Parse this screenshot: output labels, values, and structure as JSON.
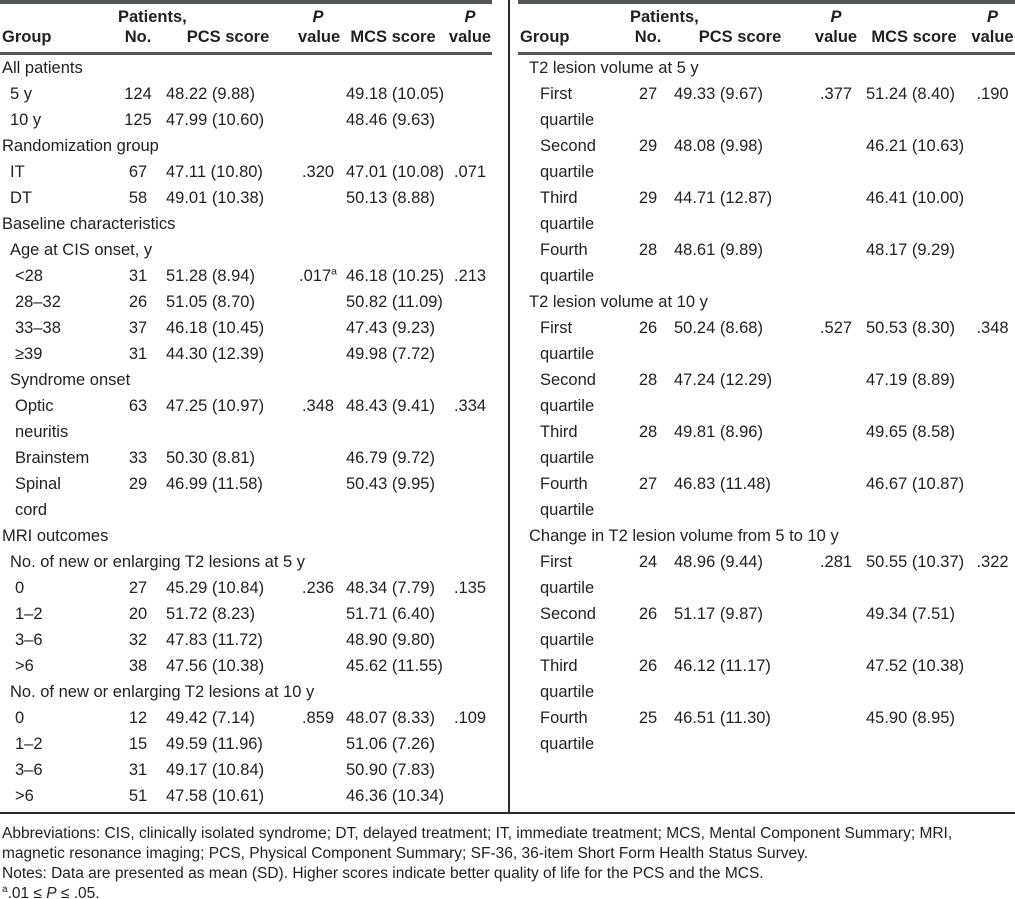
{
  "header": {
    "group": "Group",
    "patients_line1": "Patients,",
    "patients_line2": "No.",
    "pcs": "PCS score",
    "p_line1": "P",
    "p_line2": "value",
    "mcs": "MCS score"
  },
  "left_table": {
    "rows": [
      {
        "section": true,
        "indent": 0,
        "label": "All patients"
      },
      {
        "indent": 1,
        "label": "5 y",
        "n": "124",
        "pcs": "48.22 (9.88)",
        "p1": "",
        "mcs": "49.18 (10.05)",
        "p2": ""
      },
      {
        "indent": 1,
        "label": "10 y",
        "n": "125",
        "pcs": "47.99 (10.60)",
        "p1": "",
        "mcs": "48.46 (9.63)",
        "p2": ""
      },
      {
        "section": true,
        "indent": 0,
        "label": "Randomization group"
      },
      {
        "indent": 1,
        "label": "IT",
        "n": "67",
        "pcs": "47.11 (10.80)",
        "p1": ".320",
        "mcs": "47.01 (10.08)",
        "p2": ".071"
      },
      {
        "indent": 1,
        "label": "DT",
        "n": "58",
        "pcs": "49.01 (10.38)",
        "p1": "",
        "mcs": "50.13 (8.88)",
        "p2": ""
      },
      {
        "section": true,
        "indent": 0,
        "label": "Baseline characteristics"
      },
      {
        "section": true,
        "indent": 1,
        "label": "Age at CIS onset, y"
      },
      {
        "indent": 2,
        "label": "<28",
        "n": "31",
        "pcs": "51.28 (8.94)",
        "p1": ".017",
        "p1_sup": "a",
        "mcs": "46.18 (10.25)",
        "p2": ".213"
      },
      {
        "indent": 2,
        "label": "28–32",
        "n": "26",
        "pcs": "51.05 (8.70)",
        "p1": "",
        "mcs": "50.82 (11.09)",
        "p2": ""
      },
      {
        "indent": 2,
        "label": "33–38",
        "n": "37",
        "pcs": "46.18 (10.45)",
        "p1": "",
        "mcs": "47.43 (9.23)",
        "p2": ""
      },
      {
        "indent": 2,
        "label": "≥39",
        "n": "31",
        "pcs": "44.30 (12.39)",
        "p1": "",
        "mcs": "49.98 (7.72)",
        "p2": ""
      },
      {
        "section": true,
        "indent": 1,
        "label": "Syndrome onset"
      },
      {
        "indent": 2,
        "label": "Optic",
        "label2": "neuritis",
        "n": "63",
        "pcs": "47.25 (10.97)",
        "p1": ".348",
        "mcs": "48.43 (9.41)",
        "p2": ".334"
      },
      {
        "indent": 2,
        "label": "Brainstem",
        "n": "33",
        "pcs": "50.30 (8.81)",
        "p1": "",
        "mcs": "46.79 (9.72)",
        "p2": ""
      },
      {
        "indent": 2,
        "label": "Spinal",
        "label2": "cord",
        "n": "29",
        "pcs": "46.99 (11.58)",
        "p1": "",
        "mcs": "50.43 (9.95)",
        "p2": ""
      },
      {
        "section": true,
        "indent": 0,
        "label": "MRI outcomes"
      },
      {
        "section": true,
        "indent": 1,
        "label": "No. of new or enlarging T2 lesions at 5 y"
      },
      {
        "indent": 2,
        "label": "0",
        "n": "27",
        "pcs": "45.29 (10.84)",
        "p1": ".236",
        "mcs": "48.34 (7.79)",
        "p2": ".135"
      },
      {
        "indent": 2,
        "label": "1–2",
        "n": "20",
        "pcs": "51.72 (8.23)",
        "p1": "",
        "mcs": "51.71 (6.40)",
        "p2": ""
      },
      {
        "indent": 2,
        "label": "3–6",
        "n": "32",
        "pcs": "47.83 (11.72)",
        "p1": "",
        "mcs": "48.90 (9.80)",
        "p2": ""
      },
      {
        "indent": 2,
        "label": ">6",
        "n": "38",
        "pcs": "47.56 (10.38)",
        "p1": "",
        "mcs": "45.62 (11.55)",
        "p2": ""
      },
      {
        "section": true,
        "indent": 1,
        "label": "No. of new or enlarging T2 lesions at 10 y"
      },
      {
        "indent": 2,
        "label": "0",
        "n": "12",
        "pcs": "49.42 (7.14)",
        "p1": ".859",
        "mcs": "48.07 (8.33)",
        "p2": ".109"
      },
      {
        "indent": 2,
        "label": "1–2",
        "n": "15",
        "pcs": "49.59 (11.96)",
        "p1": "",
        "mcs": "51.06 (7.26)",
        "p2": ""
      },
      {
        "indent": 2,
        "label": "3–6",
        "n": "31",
        "pcs": "49.17 (10.84)",
        "p1": "",
        "mcs": "50.90 (7.83)",
        "p2": ""
      },
      {
        "indent": 2,
        "label": ">6",
        "n": "51",
        "pcs": "47.58 (10.61)",
        "p1": "",
        "mcs": "46.36 (10.34)",
        "p2": ""
      }
    ]
  },
  "right_table": {
    "rows": [
      {
        "section": true,
        "indent": 1,
        "label": "T2 lesion volume at 5 y"
      },
      {
        "indent": 2,
        "label": "First",
        "label2": "quartile",
        "n": "27",
        "pcs": "49.33 (9.67)",
        "p1": ".377",
        "mcs": "51.24 (8.40)",
        "p2": ".190"
      },
      {
        "indent": 2,
        "label": "Second",
        "label2": "quartile",
        "n": "29",
        "pcs": "48.08 (9.98)",
        "p1": "",
        "mcs": "46.21 (10.63)",
        "p2": ""
      },
      {
        "indent": 2,
        "label": "Third",
        "label2": "quartile",
        "n": "29",
        "pcs": "44.71 (12.87)",
        "p1": "",
        "mcs": "46.41 (10.00)",
        "p2": ""
      },
      {
        "indent": 2,
        "label": "Fourth",
        "label2": "quartile",
        "n": "28",
        "pcs": "48.61 (9.89)",
        "p1": "",
        "mcs": "48.17 (9.29)",
        "p2": ""
      },
      {
        "section": true,
        "indent": 1,
        "label": "T2 lesion volume at 10 y"
      },
      {
        "indent": 2,
        "label": "First",
        "label2": "quartile",
        "n": "26",
        "pcs": "50.24 (8.68)",
        "p1": ".527",
        "mcs": "50.53 (8.30)",
        "p2": ".348"
      },
      {
        "indent": 2,
        "label": "Second",
        "label2": "quartile",
        "n": "28",
        "pcs": "47.24 (12.29)",
        "p1": "",
        "mcs": "47.19 (8.89)",
        "p2": ""
      },
      {
        "indent": 2,
        "label": "Third",
        "label2": "quartile",
        "n": "28",
        "pcs": "49.81 (8.96)",
        "p1": "",
        "mcs": "49.65 (8.58)",
        "p2": ""
      },
      {
        "indent": 2,
        "label": "Fourth",
        "label2": "quartile",
        "n": "27",
        "pcs": "46.83 (11.48)",
        "p1": "",
        "mcs": "46.67 (10.87)",
        "p2": ""
      },
      {
        "section": true,
        "indent": 1,
        "label": "Change in T2 lesion volume from 5 to 10 y"
      },
      {
        "indent": 2,
        "label": "First",
        "label2": "quartile",
        "n": "24",
        "pcs": "48.96 (9.44)",
        "p1": ".281",
        "mcs": "50.55 (10.37)",
        "p2": ".322"
      },
      {
        "indent": 2,
        "label": "Second",
        "label2": "quartile",
        "n": "26",
        "pcs": "51.17 (9.87)",
        "p1": "",
        "mcs": "49.34 (7.51)",
        "p2": ""
      },
      {
        "indent": 2,
        "label": "Third",
        "label2": "quartile",
        "n": "26",
        "pcs": "46.12 (11.17)",
        "p1": "",
        "mcs": "47.52 (10.38)",
        "p2": ""
      },
      {
        "indent": 2,
        "label": "Fourth",
        "label2": "quartile",
        "n": "25",
        "pcs": "46.51 (11.30)",
        "p1": "",
        "mcs": "45.90 (8.95)",
        "p2": ""
      }
    ]
  },
  "footnotes": [
    {
      "segments": [
        {
          "t": "Abbreviations: CIS, clinically isolated syndrome; DT, delayed treatment; IT, immediate treatment; MCS, Mental Component Summary; MRI, magnetic resonance imaging; PCS, Physical Component Summary; SF-36, 36-item Short Form Health Status Survey."
        }
      ]
    },
    {
      "segments": [
        {
          "t": "Notes: Data are presented as mean (SD). Higher scores indicate better quality of life for the PCS and the MCS."
        }
      ]
    },
    {
      "segments": [
        {
          "t": "a",
          "sup": true
        },
        {
          "t": ".01 ≤ "
        },
        {
          "t": "P",
          "italic": true
        },
        {
          "t": " ≤ .05."
        }
      ]
    }
  ],
  "colors": {
    "background": "#ffffff",
    "text": "#231f20",
    "rule_thick": "#545557",
    "rule_thin": "#2b2b2d"
  }
}
